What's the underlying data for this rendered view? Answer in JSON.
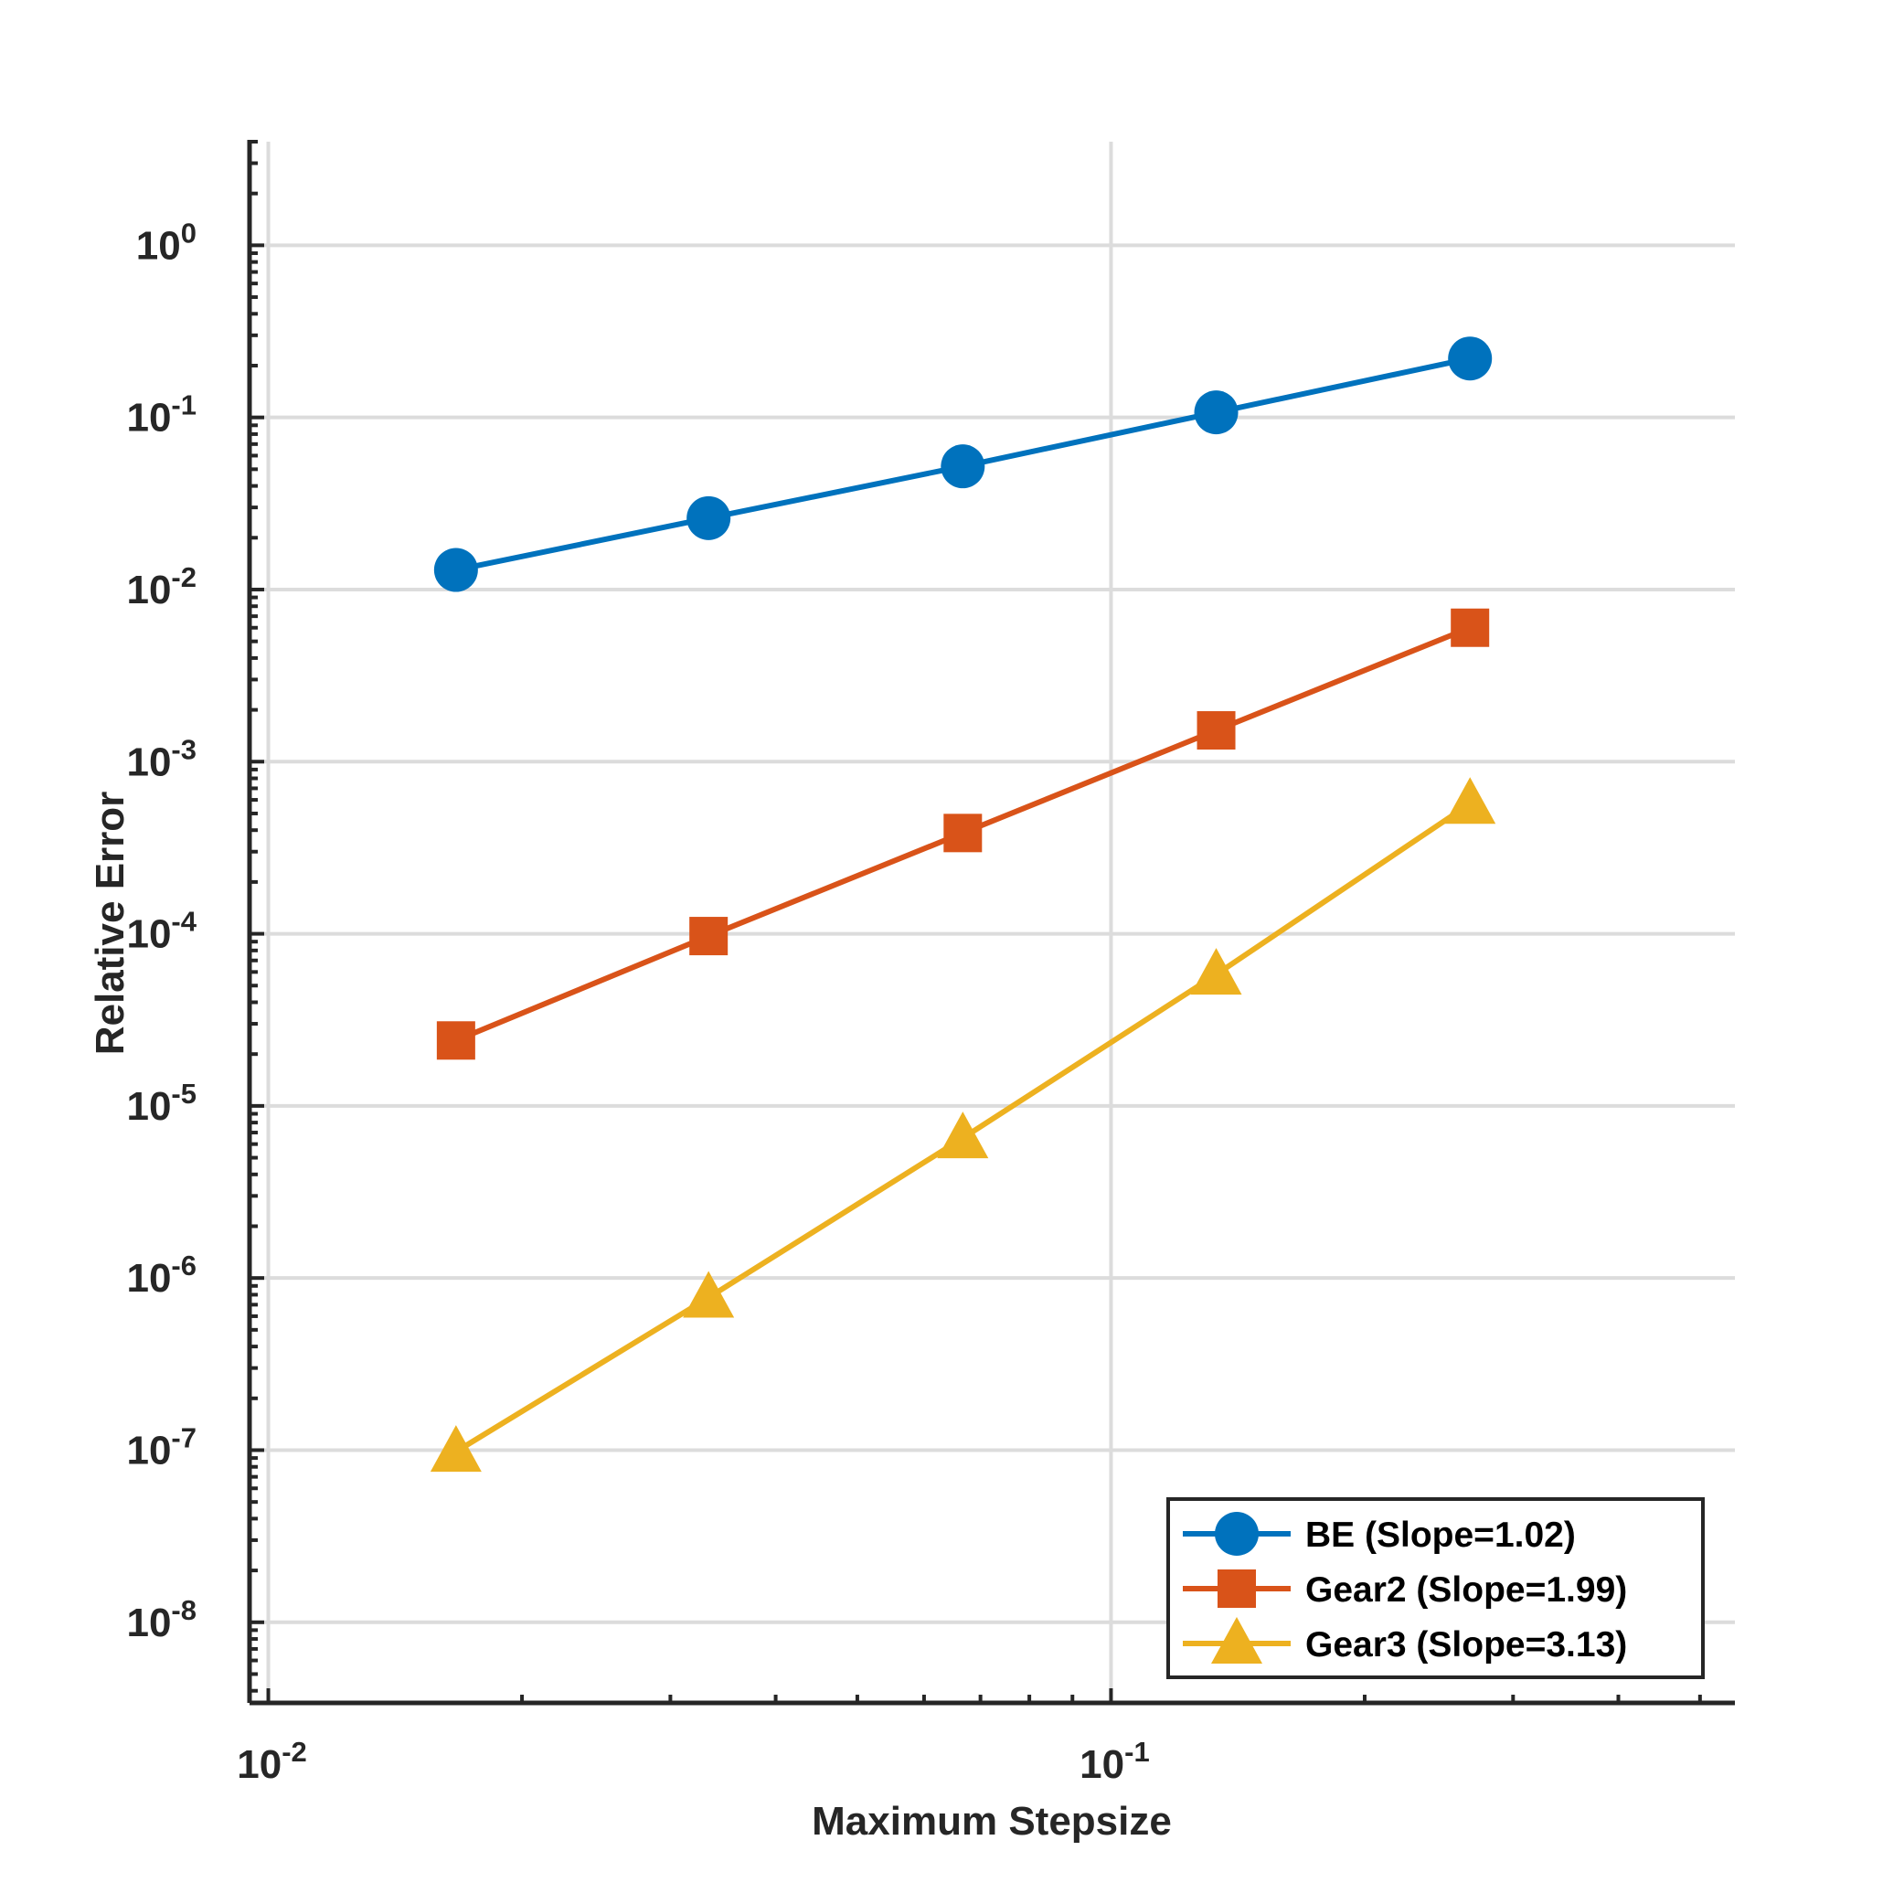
{
  "chart_data": {
    "type": "line",
    "xlabel": "Maximum Stepsize",
    "ylabel": "Relative Error",
    "x_scale": "log",
    "y_scale": "log",
    "xlim": [
      0.0095,
      0.55
    ],
    "ylim": [
      3.4e-09,
      4.0
    ],
    "grid": true,
    "legend_position": "bottom-right",
    "x_ticks": [
      {
        "value": 0.01,
        "base": "10",
        "exp": "-2"
      },
      {
        "value": 0.1,
        "base": "10",
        "exp": "-1"
      }
    ],
    "y_ticks": [
      {
        "value": 1,
        "base": "10",
        "exp": "0"
      },
      {
        "value": 0.1,
        "base": "10",
        "exp": "-1"
      },
      {
        "value": 0.01,
        "base": "10",
        "exp": "-2"
      },
      {
        "value": 0.001,
        "base": "10",
        "exp": "-3"
      },
      {
        "value": 0.0001,
        "base": "10",
        "exp": "-4"
      },
      {
        "value": 1e-05,
        "base": "10",
        "exp": "-5"
      },
      {
        "value": 1e-06,
        "base": "10",
        "exp": "-6"
      },
      {
        "value": 1e-07,
        "base": "10",
        "exp": "-7"
      },
      {
        "value": 1e-08,
        "base": "10",
        "exp": "-8"
      }
    ],
    "x": [
      0.0167,
      0.0333,
      0.0667,
      0.1333,
      0.2667
    ],
    "series": [
      {
        "name": "BE (Slope=1.02)",
        "marker": "circle",
        "color": "#0072BD",
        "values": [
          0.013,
          0.026,
          0.052,
          0.107,
          0.22
        ]
      },
      {
        "name": "Gear2 (Slope=1.99)",
        "marker": "square",
        "color": "#D95319",
        "values": [
          2.4e-05,
          9.7e-05,
          0.000385,
          0.00152,
          0.006
        ]
      },
      {
        "name": "Gear3 (Slope=3.13)",
        "marker": "triangle",
        "color": "#EDB120",
        "values": [
          9.8e-08,
          7.7e-07,
          6.5e-06,
          5.8e-05,
          0.00057
        ]
      }
    ]
  }
}
